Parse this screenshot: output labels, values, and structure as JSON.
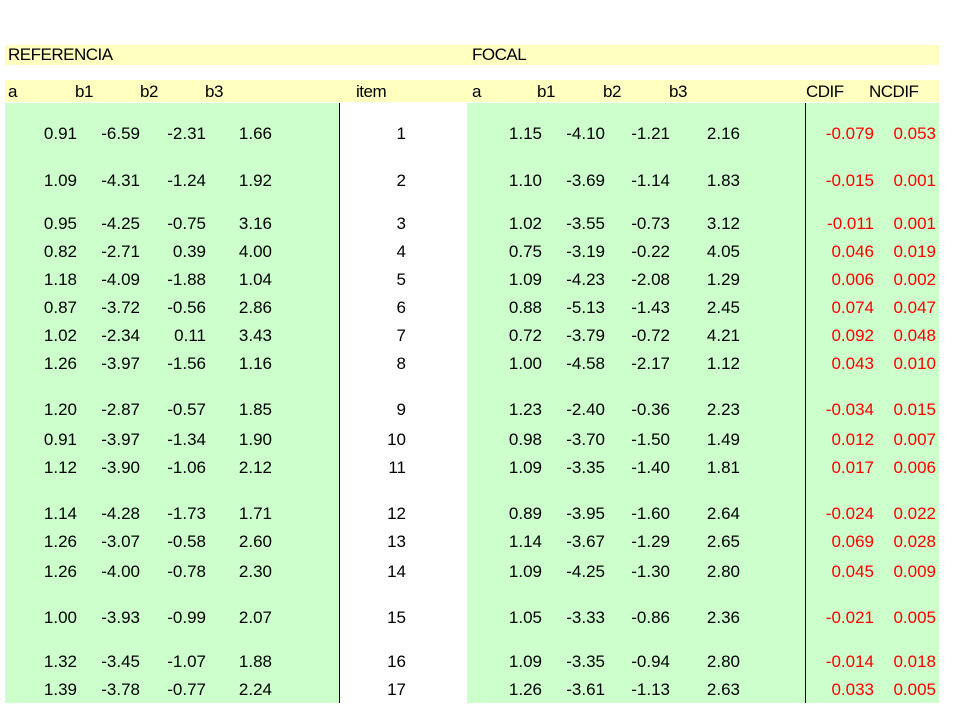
{
  "headers": {
    "referencia": "REFERENCIA",
    "focal": "FOCAL",
    "ref_cols": [
      "a",
      "b1",
      "b2",
      "b3"
    ],
    "item": "item",
    "focal_cols": [
      "a",
      "b1",
      "b2",
      "b3"
    ],
    "cdif": "CDIF",
    "ncdif": "NCDIF"
  },
  "rows": [
    {
      "ref": [
        "0.91",
        "-6.59",
        "-2.31",
        "1.66"
      ],
      "item": "1",
      "focal": [
        "1.15",
        "-4.10",
        "-1.21",
        "2.16"
      ],
      "cdif": "-0.079",
      "ncdif": "0.053"
    },
    {
      "ref": [
        "1.09",
        "-4.31",
        "-1.24",
        "1.92"
      ],
      "item": "2",
      "focal": [
        "1.10",
        "-3.69",
        "-1.14",
        "1.83"
      ],
      "cdif": "-0.015",
      "ncdif": "0.001"
    },
    {
      "ref": [
        "0.95",
        "-4.25",
        "-0.75",
        "3.16"
      ],
      "item": "3",
      "focal": [
        "1.02",
        "-3.55",
        "-0.73",
        "3.12"
      ],
      "cdif": "-0.011",
      "ncdif": "0.001"
    },
    {
      "ref": [
        "0.82",
        "-2.71",
        "0.39",
        "4.00"
      ],
      "item": "4",
      "focal": [
        "0.75",
        "-3.19",
        "-0.22",
        "4.05"
      ],
      "cdif": "0.046",
      "ncdif": "0.019"
    },
    {
      "ref": [
        "1.18",
        "-4.09",
        "-1.88",
        "1.04"
      ],
      "item": "5",
      "focal": [
        "1.09",
        "-4.23",
        "-2.08",
        "1.29"
      ],
      "cdif": "0.006",
      "ncdif": "0.002"
    },
    {
      "ref": [
        "0.87",
        "-3.72",
        "-0.56",
        "2.86"
      ],
      "item": "6",
      "focal": [
        "0.88",
        "-5.13",
        "-1.43",
        "2.45"
      ],
      "cdif": "0.074",
      "ncdif": "0.047"
    },
    {
      "ref": [
        "1.02",
        "-2.34",
        "0.11",
        "3.43"
      ],
      "item": "7",
      "focal": [
        "0.72",
        "-3.79",
        "-0.72",
        "4.21"
      ],
      "cdif": "0.092",
      "ncdif": "0.048"
    },
    {
      "ref": [
        "1.26",
        "-3.97",
        "-1.56",
        "1.16"
      ],
      "item": "8",
      "focal": [
        "1.00",
        "-4.58",
        "-2.17",
        "1.12"
      ],
      "cdif": "0.043",
      "ncdif": "0.010"
    },
    {
      "ref": [
        "1.20",
        "-2.87",
        "-0.57",
        "1.85"
      ],
      "item": "9",
      "focal": [
        "1.23",
        "-2.40",
        "-0.36",
        "2.23"
      ],
      "cdif": "-0.034",
      "ncdif": "0.015"
    },
    {
      "ref": [
        "0.91",
        "-3.97",
        "-1.34",
        "1.90"
      ],
      "item": "10",
      "focal": [
        "0.98",
        "-3.70",
        "-1.50",
        "1.49"
      ],
      "cdif": "0.012",
      "ncdif": "0.007"
    },
    {
      "ref": [
        "1.12",
        "-3.90",
        "-1.06",
        "2.12"
      ],
      "item": "11",
      "focal": [
        "1.09",
        "-3.35",
        "-1.40",
        "1.81"
      ],
      "cdif": "0.017",
      "ncdif": "0.006"
    },
    {
      "ref": [
        "1.14",
        "-4.28",
        "-1.73",
        "1.71"
      ],
      "item": "12",
      "focal": [
        "0.89",
        "-3.95",
        "-1.60",
        "2.64"
      ],
      "cdif": "-0.024",
      "ncdif": "0.022"
    },
    {
      "ref": [
        "1.26",
        "-3.07",
        "-0.58",
        "2.60"
      ],
      "item": "13",
      "focal": [
        "1.14",
        "-3.67",
        "-1.29",
        "2.65"
      ],
      "cdif": "0.069",
      "ncdif": "0.028"
    },
    {
      "ref": [
        "1.26",
        "-4.00",
        "-0.78",
        "2.30"
      ],
      "item": "14",
      "focal": [
        "1.09",
        "-4.25",
        "-1.30",
        "2.80"
      ],
      "cdif": "0.045",
      "ncdif": "0.009"
    },
    {
      "ref": [
        "1.00",
        "-3.93",
        "-0.99",
        "2.07"
      ],
      "item": "15",
      "focal": [
        "1.05",
        "-3.33",
        "-0.86",
        "2.36"
      ],
      "cdif": "-0.021",
      "ncdif": "0.005"
    },
    {
      "ref": [
        "1.32",
        "-3.45",
        "-1.07",
        "1.88"
      ],
      "item": "16",
      "focal": [
        "1.09",
        "-3.35",
        "-0.94",
        "2.80"
      ],
      "cdif": "-0.014",
      "ncdif": "0.018"
    },
    {
      "ref": [
        "1.39",
        "-3.78",
        "-0.77",
        "2.24"
      ],
      "item": "17",
      "focal": [
        "1.26",
        "-3.61",
        "-1.13",
        "2.63"
      ],
      "cdif": "0.033",
      "ncdif": "0.005"
    }
  ],
  "colors": {
    "header_band": "#ffffc0",
    "data_fill": "#ccffcc",
    "dif_values": "#ff0000",
    "border": "#000000"
  }
}
